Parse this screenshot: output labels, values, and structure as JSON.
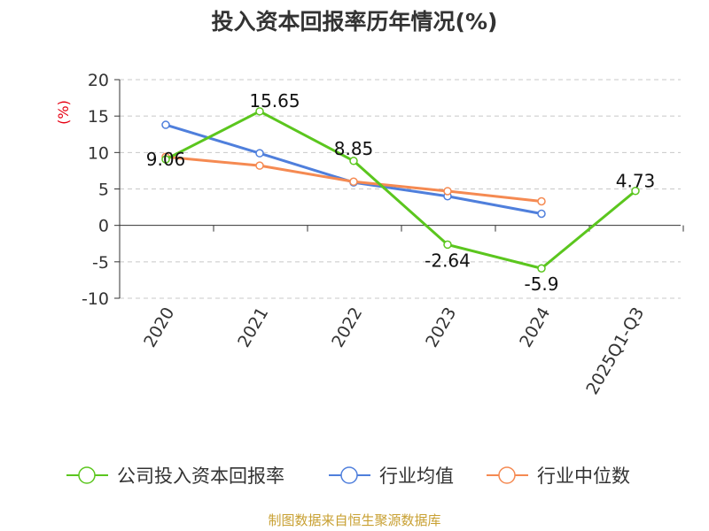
{
  "chart_data": {
    "type": "line",
    "title": "投入资本回报率历年情况(%)",
    "ylabel": "(%)",
    "xlabel": "",
    "categories": [
      "2020",
      "2021",
      "2022",
      "2023",
      "2024",
      "2025Q1-Q3"
    ],
    "ylim": [
      -10,
      20
    ],
    "yticks": [
      -10,
      -5,
      0,
      5,
      10,
      15,
      20
    ],
    "grid": true,
    "legend_position": "bottom",
    "series": [
      {
        "name": "公司投入资本回报率",
        "color": "#5bc61e",
        "values": [
          9.06,
          15.65,
          8.85,
          -2.64,
          -5.9,
          4.73
        ],
        "labels": [
          "9.06",
          "15.65",
          "8.85",
          "-2.64",
          "-5.9",
          "4.73"
        ]
      },
      {
        "name": "行业均值",
        "color": "#4f7fdc",
        "values": [
          13.8,
          9.9,
          5.9,
          4.0,
          1.6,
          null
        ]
      },
      {
        "name": "行业中位数",
        "color": "#f58a52",
        "values": [
          9.4,
          8.2,
          6.0,
          4.7,
          3.3,
          null
        ]
      }
    ],
    "source": "制图数据来自恒生聚源数据库"
  }
}
